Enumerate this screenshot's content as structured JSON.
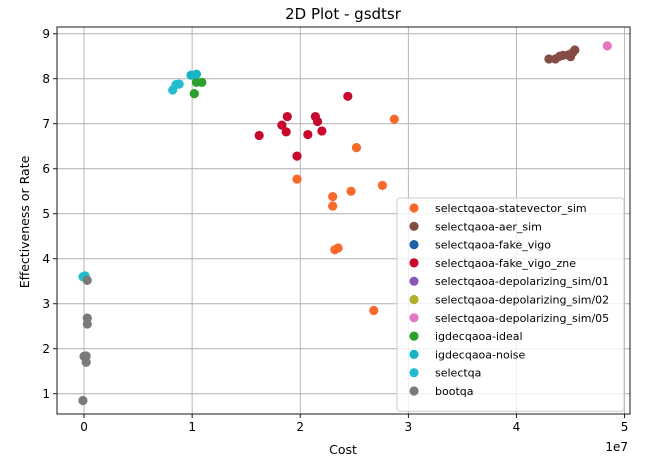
{
  "chart_data": {
    "type": "scatter",
    "title": "2D Plot - gsdtsr",
    "xlabel": "Cost",
    "ylabel": "Effectiveness or Rate",
    "x_multiplier_label": "1e7",
    "xlim": [
      -2500000,
      50500000
    ],
    "ylim": [
      0.55,
      9.15
    ],
    "xticks": [
      0,
      10000000,
      20000000,
      30000000,
      40000000,
      50000000
    ],
    "xtick_labels": [
      "0",
      "1",
      "2",
      "3",
      "4",
      "5"
    ],
    "yticks": [
      1,
      2,
      3,
      4,
      5,
      6,
      7,
      8,
      9
    ],
    "ytick_labels": [
      "1",
      "2",
      "3",
      "4",
      "5",
      "6",
      "7",
      "8",
      "9"
    ],
    "grid": true,
    "legend_position": "lower right",
    "series": [
      {
        "name": "selectqaoa-statevector_sim",
        "color": "#f96a2a",
        "points": [
          [
            19700000,
            5.77
          ],
          [
            23000000,
            5.38
          ],
          [
            23000000,
            5.17
          ],
          [
            24700000,
            5.5
          ],
          [
            25200000,
            6.47
          ],
          [
            27600000,
            5.63
          ],
          [
            28700000,
            7.1
          ],
          [
            23200000,
            4.2
          ],
          [
            23500000,
            4.24
          ],
          [
            26800000,
            2.85
          ]
        ]
      },
      {
        "name": "selectqaoa-aer_sim",
        "color": "#844c45",
        "points": [
          [
            43000000,
            8.44
          ],
          [
            43600000,
            8.44
          ],
          [
            44000000,
            8.5
          ],
          [
            44300000,
            8.52
          ],
          [
            44800000,
            8.53
          ],
          [
            45000000,
            8.49
          ],
          [
            45200000,
            8.58
          ],
          [
            45400000,
            8.64
          ]
        ]
      },
      {
        "name": "selectqaoa-fake_vigo",
        "color": "#1f5fa6",
        "points": []
      },
      {
        "name": "selectqaoa-fake_vigo_zne",
        "color": "#c8082d",
        "points": [
          [
            16200000,
            6.74
          ],
          [
            18300000,
            6.97
          ],
          [
            18700000,
            6.82
          ],
          [
            18800000,
            7.16
          ],
          [
            19700000,
            6.28
          ],
          [
            20700000,
            6.76
          ],
          [
            21400000,
            7.16
          ],
          [
            21600000,
            7.05
          ],
          [
            22000000,
            6.84
          ],
          [
            24400000,
            7.61
          ]
        ]
      },
      {
        "name": "selectqaoa-depolarizing_sim/01",
        "color": "#8c55b5",
        "points": []
      },
      {
        "name": "selectqaoa-depolarizing_sim/02",
        "color": "#b0b02a",
        "points": []
      },
      {
        "name": "selectqaoa-depolarizing_sim/05",
        "color": "#e377c2",
        "points": [
          [
            48400000,
            8.73
          ]
        ]
      },
      {
        "name": "igdecqaoa-ideal",
        "color": "#2ca02c",
        "points": [
          [
            10200000,
            7.67
          ],
          [
            10400000,
            7.92
          ],
          [
            10900000,
            7.92
          ]
        ]
      },
      {
        "name": "igdecqaoa-noise",
        "color": "#17b5c4",
        "points": [
          [
            9900000,
            8.08
          ],
          [
            10400000,
            8.1
          ]
        ]
      },
      {
        "name": "selectqa",
        "color": "#22bccd",
        "points": [
          [
            8200000,
            7.75
          ],
          [
            8500000,
            7.87
          ],
          [
            8800000,
            7.88
          ],
          [
            -100000,
            3.6
          ],
          [
            100000,
            3.62
          ]
        ]
      },
      {
        "name": "bootqa",
        "color": "#7a7a7a",
        "points": [
          [
            -100000,
            0.85
          ],
          [
            0,
            1.83
          ],
          [
            200000,
            1.84
          ],
          [
            200000,
            1.7
          ],
          [
            300000,
            2.68
          ],
          [
            300000,
            2.55
          ],
          [
            300000,
            3.52
          ]
        ]
      }
    ]
  }
}
